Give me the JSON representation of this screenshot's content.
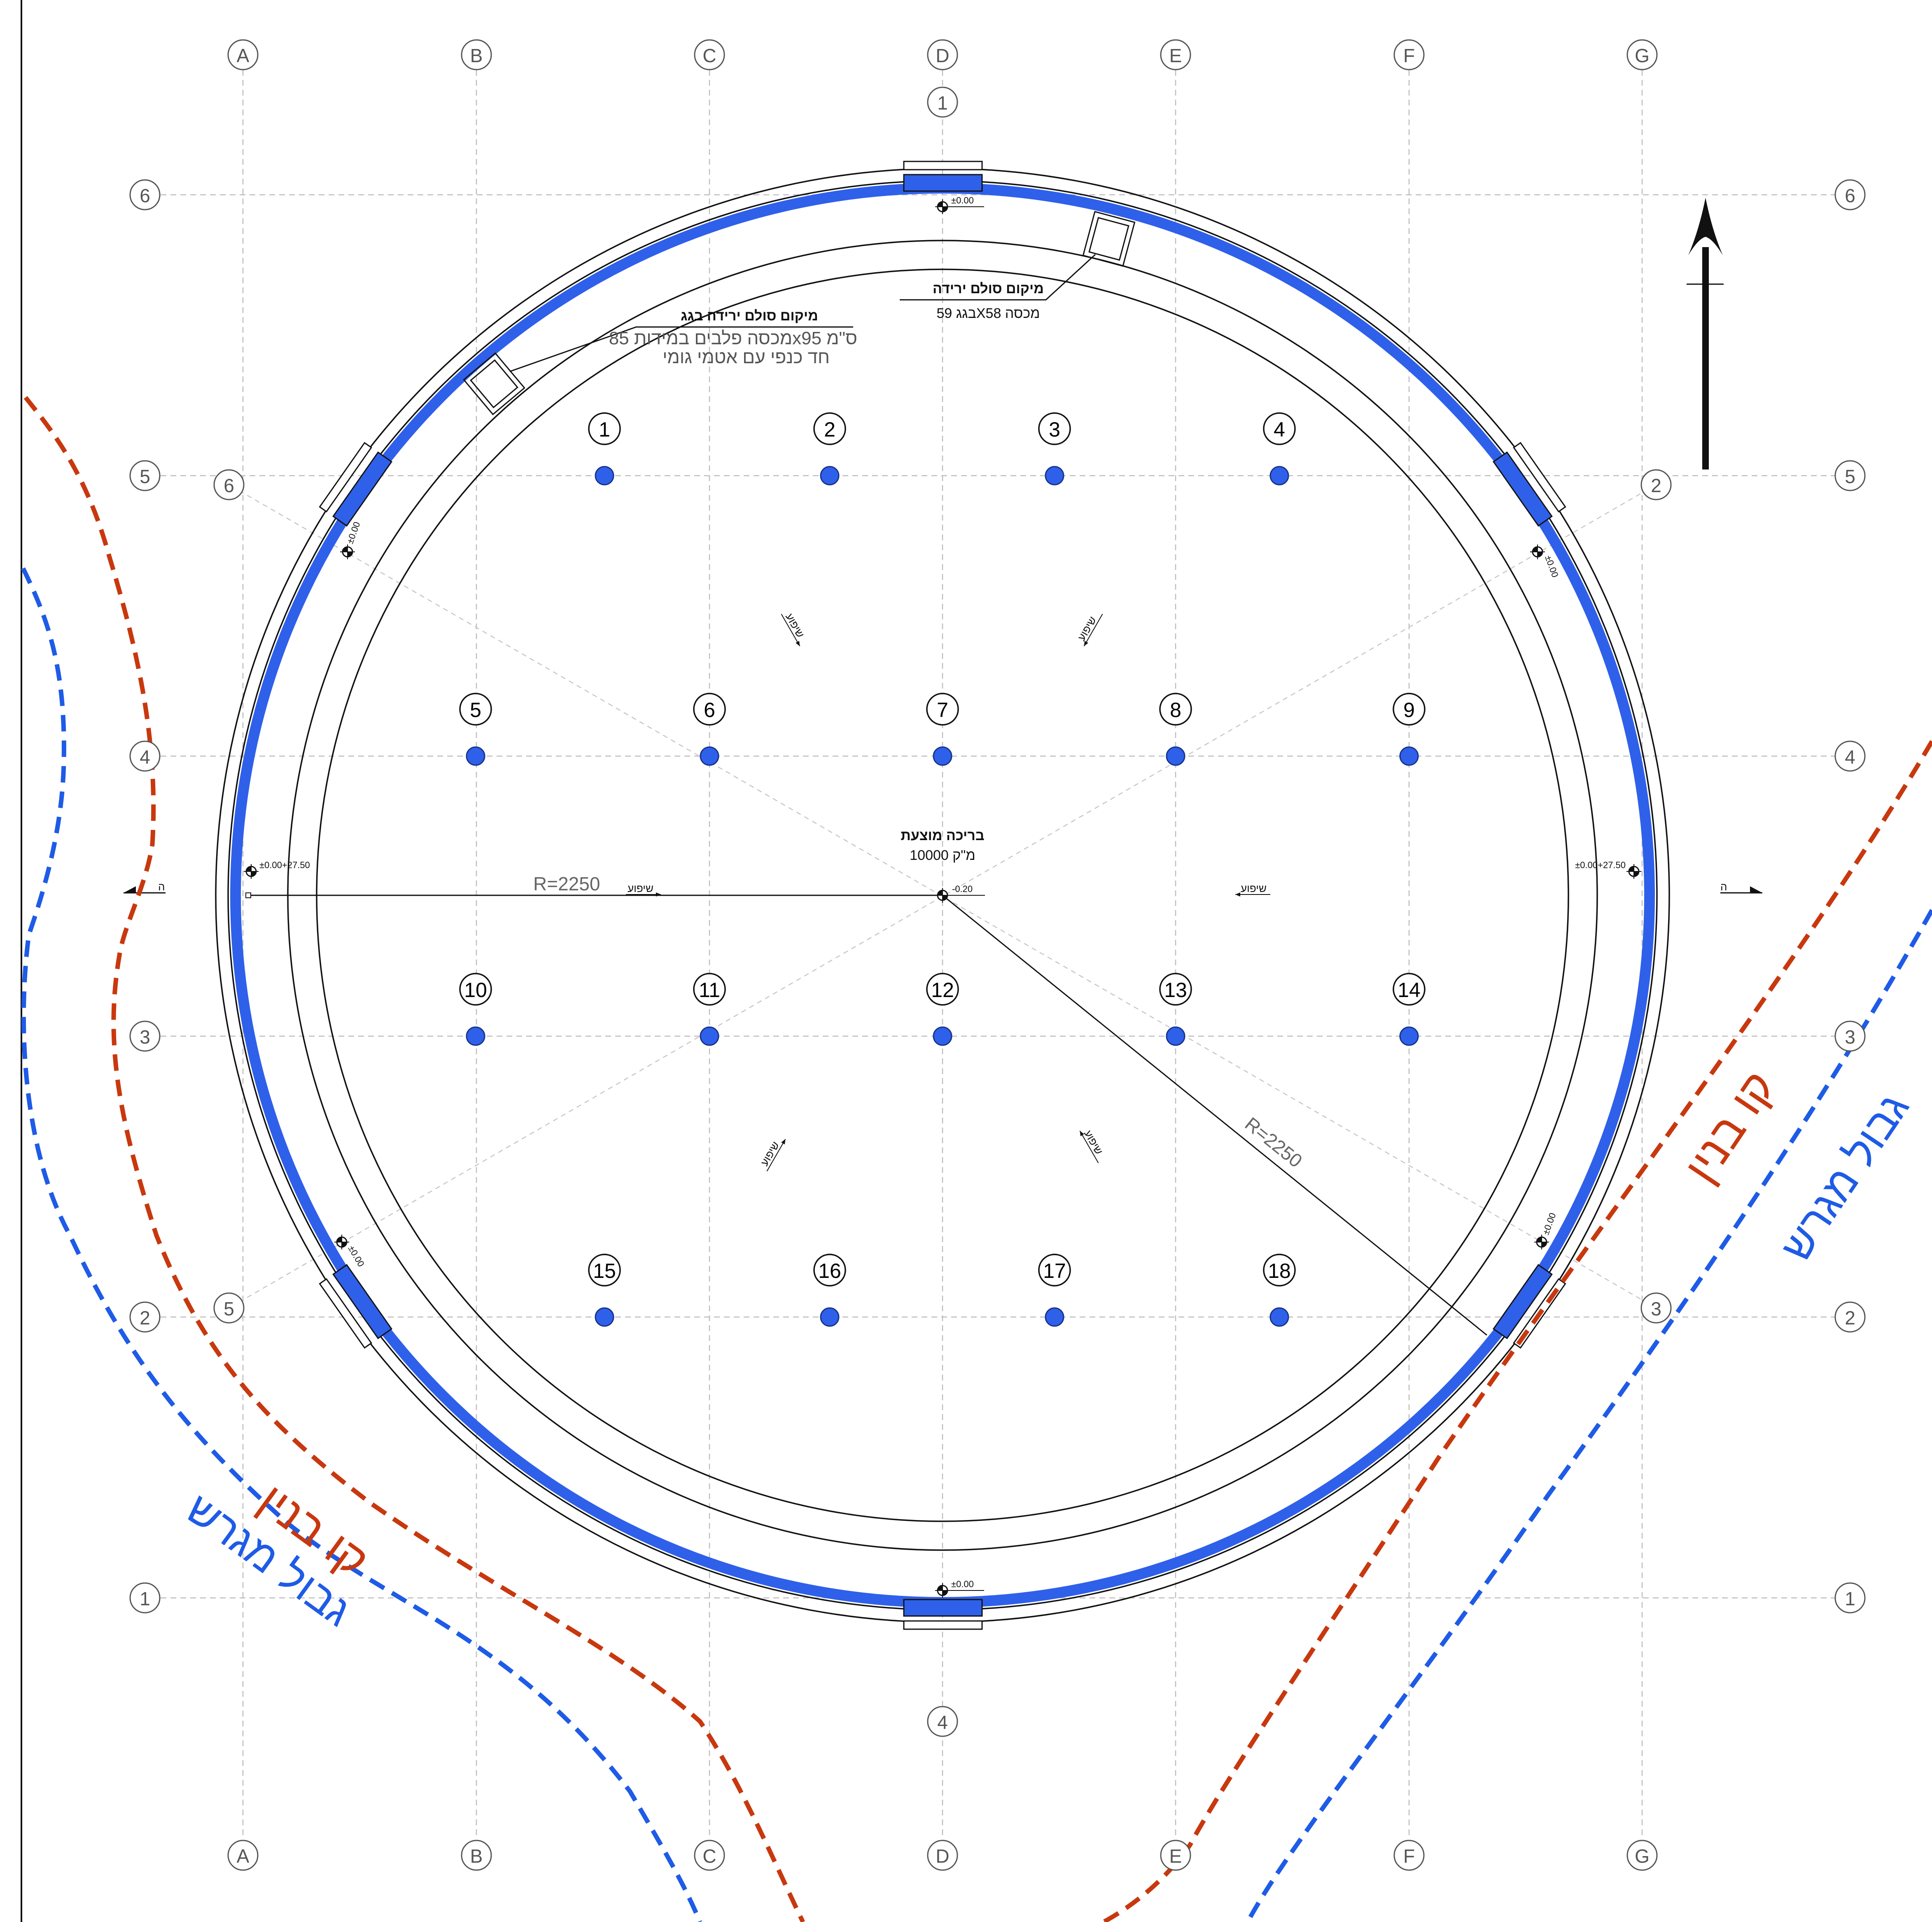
{
  "grid": {
    "column_axes": [
      "A",
      "B",
      "C",
      "D",
      "E",
      "F",
      "G"
    ],
    "row_axes": [
      "6",
      "5",
      "4",
      "3",
      "2",
      "1"
    ]
  },
  "ring_axes": [
    "1",
    "2",
    "3",
    "4",
    "5",
    "6"
  ],
  "columns": [
    "1",
    "2",
    "3",
    "4",
    "5",
    "6",
    "7",
    "8",
    "9",
    "10",
    "11",
    "12",
    "13",
    "14",
    "15",
    "16",
    "17",
    "18"
  ],
  "pool": {
    "title": "בריכה מוצעת",
    "volume": "10000 מ\"ק",
    "center_level": "-0.20",
    "radius_label": "R=2250",
    "rim_level": "±0.00",
    "side_level": "±0.00+27.50"
  },
  "ladders": {
    "top_title": "מיקום סולם ירידה",
    "top_detail": "בגג 59Xמכסה 58",
    "roof_title": "מיקום סולם ירידה בגג",
    "roof_detail_1": "מכסה פלבים במידות 85x95 ס\"מ",
    "roof_detail_2": "חד כנפי עם אטמי גומי"
  },
  "slope_label": "שיפוע",
  "section_mark": "ה",
  "boundaries": {
    "building_line": "קו בנין",
    "plot_line": "גבול מגרש"
  },
  "colors": {
    "pool_ring": "#2f60ea",
    "building_line": "#c8380e",
    "plot_line": "#1e5be6"
  },
  "icons": [
    "north-arrow-icon",
    "level-marker-icon",
    "section-marker-icon"
  ]
}
